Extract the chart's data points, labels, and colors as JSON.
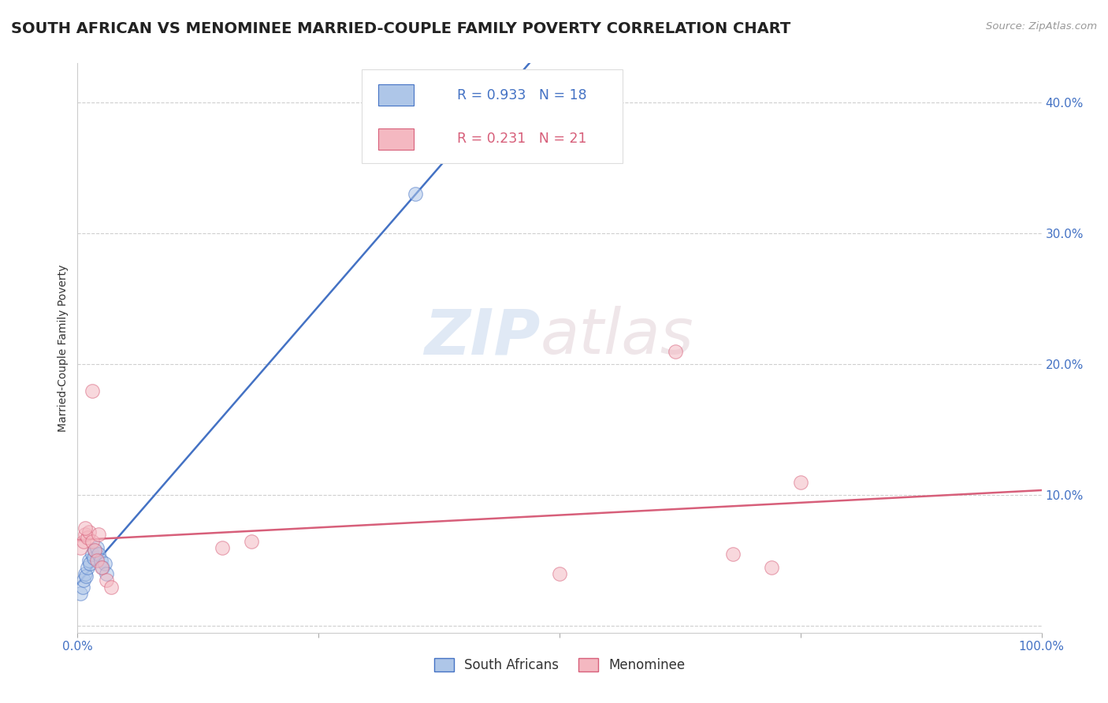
{
  "title": "SOUTH AFRICAN VS MENOMINEE MARRIED-COUPLE FAMILY POVERTY CORRELATION CHART",
  "source_text": "Source: ZipAtlas.com",
  "ylabel": "Married-Couple Family Poverty",
  "xlim": [
    0,
    1.0
  ],
  "ylim": [
    -0.005,
    0.43
  ],
  "xticks": [
    0.0,
    0.25,
    0.5,
    0.75,
    1.0
  ],
  "xtick_labels": [
    "0.0%",
    "",
    "",
    "",
    "100.0%"
  ],
  "yticks": [
    0.0,
    0.1,
    0.2,
    0.3,
    0.4
  ],
  "ytick_labels": [
    "",
    "10.0%",
    "20.0%",
    "30.0%",
    "40.0%"
  ],
  "blue_label": "South Africans",
  "pink_label": "Menominee",
  "blue_R": 0.933,
  "blue_N": 18,
  "pink_R": 0.231,
  "pink_N": 21,
  "blue_fill_color": "#aec6e8",
  "pink_fill_color": "#f4b8c1",
  "blue_edge_color": "#4472c4",
  "pink_edge_color": "#d75f7a",
  "blue_line_color": "#4472c4",
  "pink_line_color": "#d75f7a",
  "watermark_zip": "ZIP",
  "watermark_atlas": "atlas",
  "background_color": "#ffffff",
  "grid_color": "#bbbbbb",
  "tick_color": "#4472c4",
  "title_fontsize": 14,
  "axis_label_fontsize": 10,
  "tick_fontsize": 11,
  "blue_x": [
    0.003,
    0.005,
    0.006,
    0.008,
    0.009,
    0.01,
    0.012,
    0.013,
    0.015,
    0.017,
    0.018,
    0.02,
    0.022,
    0.024,
    0.026,
    0.028,
    0.03,
    0.35
  ],
  "blue_y": [
    0.025,
    0.03,
    0.035,
    0.04,
    0.038,
    0.045,
    0.05,
    0.048,
    0.055,
    0.052,
    0.058,
    0.06,
    0.055,
    0.05,
    0.045,
    0.048,
    0.04,
    0.33
  ],
  "pink_x": [
    0.003,
    0.006,
    0.008,
    0.01,
    0.012,
    0.015,
    0.018,
    0.02,
    0.025,
    0.03,
    0.035,
    0.15,
    0.18,
    0.5,
    0.62,
    0.68,
    0.72,
    0.75,
    0.008,
    0.015,
    0.022
  ],
  "pink_y": [
    0.06,
    0.065,
    0.07,
    0.068,
    0.072,
    0.065,
    0.058,
    0.05,
    0.045,
    0.035,
    0.03,
    0.06,
    0.065,
    0.04,
    0.21,
    0.055,
    0.045,
    0.11,
    0.075,
    0.18,
    0.07
  ]
}
